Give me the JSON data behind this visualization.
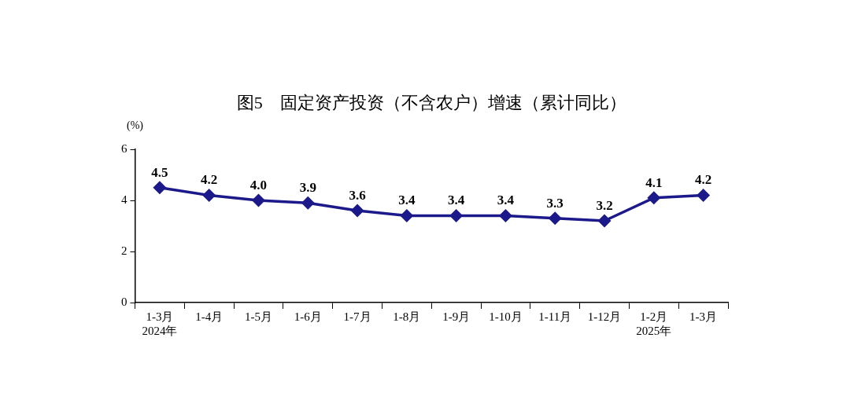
{
  "chart_data": {
    "type": "line",
    "title": "图5　固定资产投资（不含农户）增速（累计同比）",
    "ylabel": "(%)",
    "categories": [
      "1-3月\n2024年",
      "1-4月",
      "1-5月",
      "1-6月",
      "1-7月",
      "1-8月",
      "1-9月",
      "1-10月",
      "1-11月",
      "1-12月",
      "1-2月\n2025年",
      "1-3月"
    ],
    "series": [
      {
        "color": "#1c1a8a",
        "values": [
          4.5,
          4.2,
          4.0,
          3.9,
          3.6,
          3.4,
          3.4,
          3.4,
          3.3,
          3.2,
          4.1,
          4.2
        ],
        "value_labels": [
          "4.5",
          "4.2",
          "4.0",
          "3.9",
          "3.6",
          "3.4",
          "3.4",
          "3.4",
          "3.3",
          "3.2",
          "4.1",
          "4.2"
        ]
      }
    ],
    "ylim": [
      0,
      6
    ],
    "yticks": [
      0,
      2,
      4,
      6
    ],
    "grid": false,
    "legend": false,
    "marker": "diamond",
    "line_style": "solid"
  }
}
